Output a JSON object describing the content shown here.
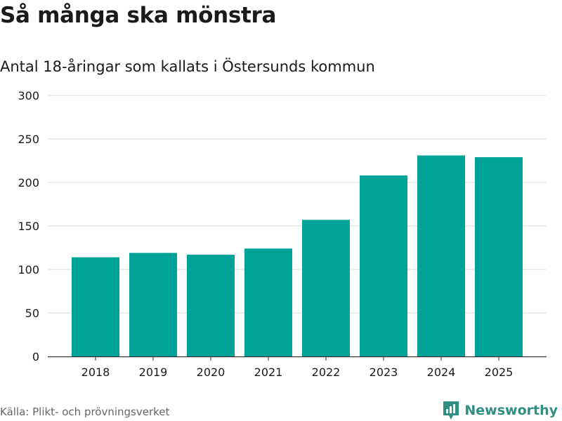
{
  "header": {
    "title": "Så många ska mönstra",
    "subtitle": "Antal 18-åringar som kallats i Östersunds kommun"
  },
  "footer": {
    "source": "Källa: Plikt- och prövningsverket",
    "brand": "Newsworthy",
    "brand_icon": "bar-chart-icon"
  },
  "colors": {
    "bar": "#00a398",
    "grid": "#dddddd",
    "axis": "#333333",
    "brand": "#2f8f82"
  },
  "chart_data": {
    "type": "bar",
    "title": "Så många ska mönstra",
    "subtitle": "Antal 18-åringar som kallats i Östersunds kommun",
    "categories": [
      "2018",
      "2019",
      "2020",
      "2021",
      "2022",
      "2023",
      "2024",
      "2025"
    ],
    "values": [
      114,
      119,
      117,
      124,
      157,
      208,
      231,
      229
    ],
    "ylim": [
      0,
      300
    ],
    "yticks": [
      0,
      50,
      100,
      150,
      200,
      250,
      300
    ],
    "xlabel": "",
    "ylabel": "",
    "grid": true,
    "legend": "none"
  }
}
